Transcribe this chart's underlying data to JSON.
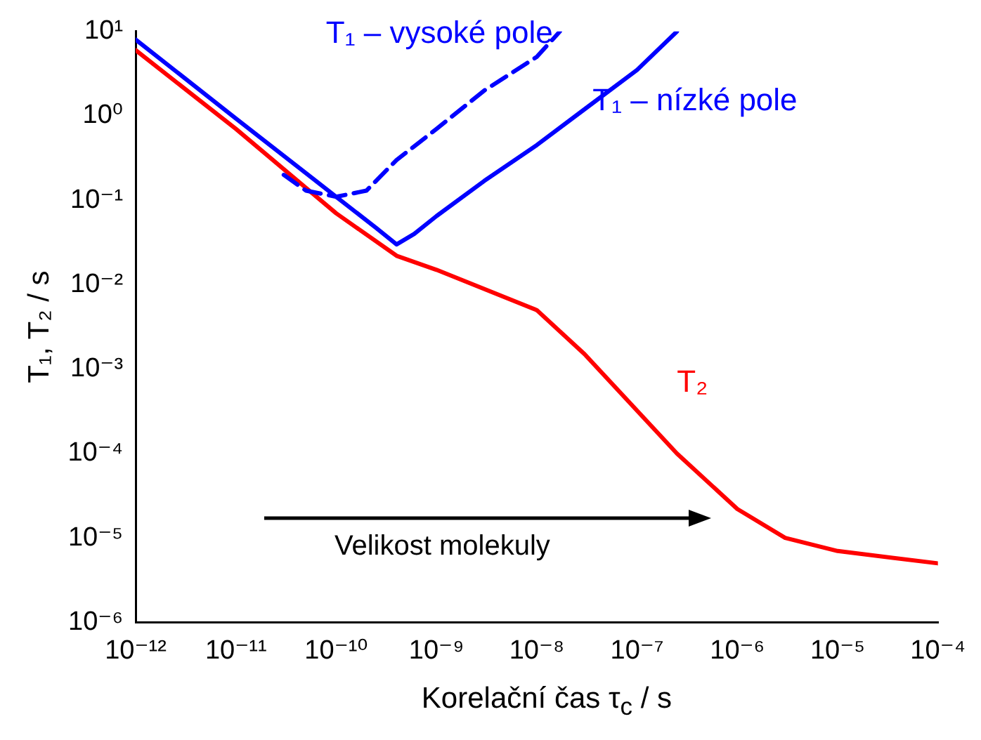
{
  "chart_data": {
    "type": "line",
    "xlabel": "Korelační čas τ$_{c}$ / s",
    "ylabel": "T₁, T₂ / s",
    "log": "xy",
    "grid": false,
    "legend": false,
    "marker": "none",
    "xlim": [
      1e-12,
      0.0001
    ],
    "ylim": [
      1e-06,
      10
    ],
    "xticks": [
      {
        "value": 1e-12,
        "label": "10⁻¹²"
      },
      {
        "value": 1e-11,
        "label": "10⁻¹¹"
      },
      {
        "value": 1e-10,
        "label": "10⁻¹⁰"
      },
      {
        "value": 1e-09,
        "label": "10⁻⁹"
      },
      {
        "value": 1e-08,
        "label": "10⁻⁸"
      },
      {
        "value": 1e-07,
        "label": "10⁻⁷"
      },
      {
        "value": 1e-06,
        "label": "10⁻⁶"
      },
      {
        "value": 1e-05,
        "label": "10⁻⁵"
      },
      {
        "value": 0.0001,
        "label": "10⁻⁴"
      }
    ],
    "yticks": [
      {
        "value": 1e-06,
        "label": "10⁻⁶"
      },
      {
        "value": 1e-05,
        "label": "10⁻⁵"
      },
      {
        "value": 0.0001,
        "label": "10⁻⁴"
      },
      {
        "value": 0.001,
        "label": "10⁻³"
      },
      {
        "value": 0.01,
        "label": "10⁻²"
      },
      {
        "value": 0.1,
        "label": "10⁻¹"
      },
      {
        "value": 1,
        "label": "10⁰"
      },
      {
        "value": 10,
        "label": "10¹"
      }
    ],
    "annotations": [
      "Velikost molekuly"
    ],
    "series": [
      {
        "name": "T₁ – vysoké pole",
        "color": "#0000ff",
        "line_style": "dashed",
        "x": [
          3e-11,
          5e-11,
          1e-10,
          2e-10,
          4e-10,
          1e-09,
          3e-09,
          1e-08,
          1.7e-08
        ],
        "values": [
          0.2,
          0.13,
          0.11,
          0.13,
          0.3,
          0.7,
          2,
          5,
          10
        ]
      },
      {
        "name": "T₁ – nízké pole",
        "color": "#0000ff",
        "line_style": "solid",
        "x": [
          1e-12,
          1e-11,
          1e-10,
          2.5e-10,
          4e-10,
          6e-10,
          1e-09,
          3e-09,
          1e-08,
          3e-08,
          1e-07,
          2.5e-07
        ],
        "values": [
          8,
          0.93,
          0.11,
          0.047,
          0.03,
          0.04,
          0.065,
          0.17,
          0.45,
          1.2,
          3.5,
          10
        ]
      },
      {
        "name": "T₂",
        "color": "#ff0000",
        "line_style": "solid",
        "x": [
          1e-12,
          1e-11,
          1e-10,
          4e-10,
          1e-09,
          1e-08,
          3e-08,
          2.5e-07,
          1e-06,
          3e-06,
          1e-05,
          0.0001
        ],
        "values": [
          6,
          0.7,
          0.07,
          0.022,
          0.015,
          0.005,
          0.0015,
          0.0001,
          2.2e-05,
          1e-05,
          7e-06,
          5e-06
        ]
      }
    ]
  }
}
